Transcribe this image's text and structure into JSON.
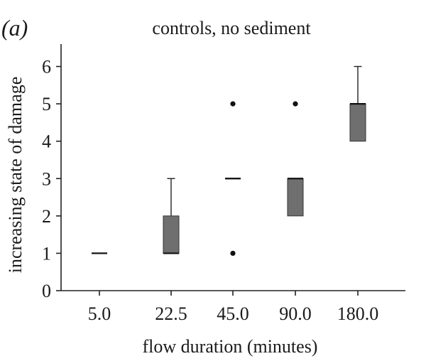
{
  "chart_data": {
    "type": "boxplot",
    "panel_label": "(a)",
    "title": "controls, no sediment",
    "xlabel": "flow duration (minutes)",
    "ylabel": "increasing state of damage",
    "ylim": [
      0,
      6.6
    ],
    "yticks": [
      0,
      1,
      2,
      3,
      4,
      5,
      6
    ],
    "categories": [
      "5.0",
      "22.5",
      "45.0",
      "90.0",
      "180.0"
    ],
    "boxes": [
      {
        "category": "5.0",
        "q1": 1,
        "median": 1,
        "q3": 1,
        "whisker_low": 1,
        "whisker_high": 1,
        "outliers": []
      },
      {
        "category": "22.5",
        "q1": 1,
        "median": 1,
        "q3": 2,
        "whisker_low": 1,
        "whisker_high": 3,
        "outliers": []
      },
      {
        "category": "45.0",
        "q1": 3,
        "median": 3,
        "q3": 3,
        "whisker_low": 3,
        "whisker_high": 3,
        "outliers": [
          1,
          5
        ]
      },
      {
        "category": "90.0",
        "q1": 2,
        "median": 3,
        "q3": 3,
        "whisker_low": 2,
        "whisker_high": 3,
        "outliers": [
          5
        ]
      },
      {
        "category": "180.0",
        "q1": 4,
        "median": 5,
        "q3": 5,
        "whisker_low": 4,
        "whisker_high": 6,
        "outliers": []
      }
    ],
    "box_color": "#6f6f6f",
    "grid": false
  }
}
